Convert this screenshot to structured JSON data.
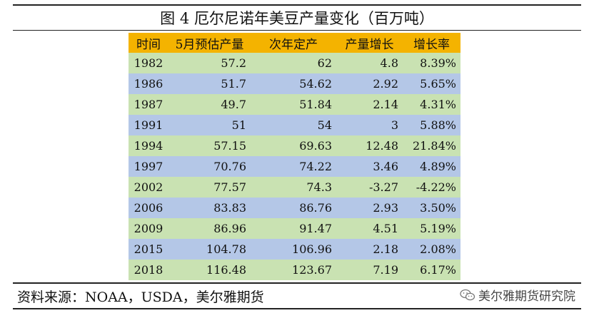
{
  "title": "图 4  厄尔尼诺年美豆产量变化（百万吨）",
  "table": {
    "headers": [
      "时间",
      "5月预估产量",
      "次年定产",
      "产量增长",
      "增长率"
    ],
    "rows": [
      [
        "1982",
        "57.2",
        "62",
        "4.8",
        "8.39%"
      ],
      [
        "1986",
        "51.7",
        "54.62",
        "2.92",
        "5.65%"
      ],
      [
        "1987",
        "49.7",
        "51.84",
        "2.14",
        "4.31%"
      ],
      [
        "1991",
        "51",
        "54",
        "3",
        "5.88%"
      ],
      [
        "1994",
        "57.15",
        "69.63",
        "12.48",
        "21.84%"
      ],
      [
        "1997",
        "70.76",
        "74.22",
        "3.46",
        "4.89%"
      ],
      [
        "2002",
        "77.57",
        "74.3",
        "-3.27",
        "-4.22%"
      ],
      [
        "2006",
        "83.83",
        "86.76",
        "2.93",
        "3.50%"
      ],
      [
        "2009",
        "86.96",
        "91.47",
        "4.51",
        "5.19%"
      ],
      [
        "2015",
        "104.78",
        "106.96",
        "2.18",
        "2.08%"
      ],
      [
        "2018",
        "116.48",
        "123.67",
        "7.19",
        "6.17%"
      ]
    ]
  },
  "source": "资料来源：NOAA，USDA，美尔雅期货",
  "watermark": "美尔雅期货研究院",
  "colors": {
    "header": "#f4b300",
    "row_green": "#c9e2b2",
    "row_blue": "#b4c7e7"
  },
  "icons": {
    "watermark": "wechat-icon"
  }
}
